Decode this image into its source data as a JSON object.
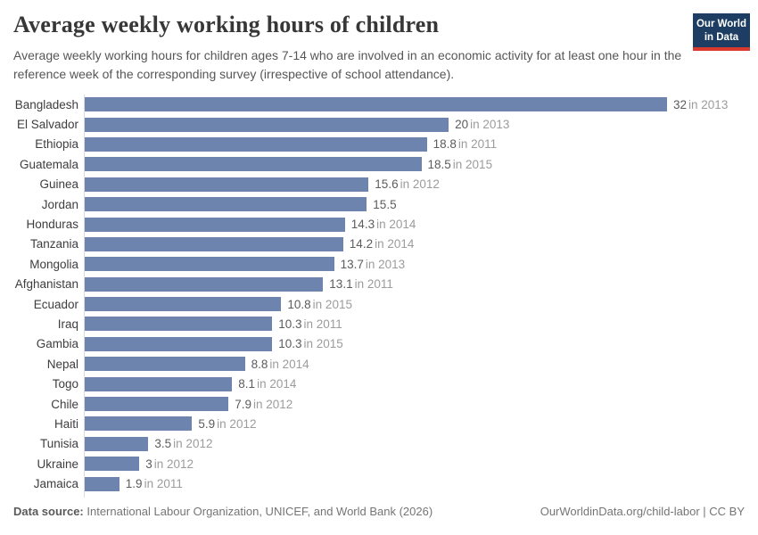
{
  "header": {
    "title": "Average weekly working hours of children",
    "subtitle": "Average weekly working hours for children ages 7-14 who are involved in an economic activity for at least one hour in the reference week of the corresponding survey (irrespective of school attendance).",
    "logo": {
      "line1": "Our World",
      "line2": "in Data",
      "bg_color": "#1d3d63",
      "stripe_color": "#d93a2d"
    }
  },
  "chart_data": {
    "type": "bar",
    "orientation": "horizontal",
    "title": "Average weekly working hours of children",
    "xlabel": "",
    "ylabel": "",
    "unit": "hours per week",
    "xlim": [
      0,
      32
    ],
    "grid": false,
    "bar_color": "#6d84ae",
    "categories": [
      "Bangladesh",
      "El Salvador",
      "Ethiopia",
      "Guatemala",
      "Guinea",
      "Jordan",
      "Honduras",
      "Tanzania",
      "Mongolia",
      "Afghanistan",
      "Ecuador",
      "Iraq",
      "Gambia",
      "Nepal",
      "Togo",
      "Chile",
      "Haiti",
      "Tunisia",
      "Ukraine",
      "Jamaica"
    ],
    "values": [
      32,
      20,
      18.8,
      18.5,
      15.6,
      15.5,
      14.3,
      14.2,
      13.7,
      13.1,
      10.8,
      10.3,
      10.3,
      8.8,
      8.1,
      7.9,
      5.9,
      3.5,
      3,
      1.9
    ],
    "value_labels": [
      "32",
      "20",
      "18.8",
      "18.5",
      "15.6",
      "15.5",
      "14.3",
      "14.2",
      "13.7",
      "13.1",
      "10.8",
      "10.3",
      "10.3",
      "8.8",
      "8.1",
      "7.9",
      "5.9",
      "3.5",
      "3",
      "1.9"
    ],
    "year_labels": [
      "in 2013",
      "in 2013",
      "in 2011",
      "in 2015",
      "in 2012",
      "",
      "in 2014",
      "in 2014",
      "in 2013",
      "in 2011",
      "in 2015",
      "in 2011",
      "in 2015",
      "in 2014",
      "in 2014",
      "in 2012",
      "in 2012",
      "in 2012",
      "in 2012",
      "in 2011"
    ]
  },
  "footer": {
    "datasource_label": "Data source:",
    "datasource_text": "International Labour Organization, UNICEF, and World Bank (2026)",
    "link_text": "OurWorldinData.org/child-labor | CC BY"
  }
}
